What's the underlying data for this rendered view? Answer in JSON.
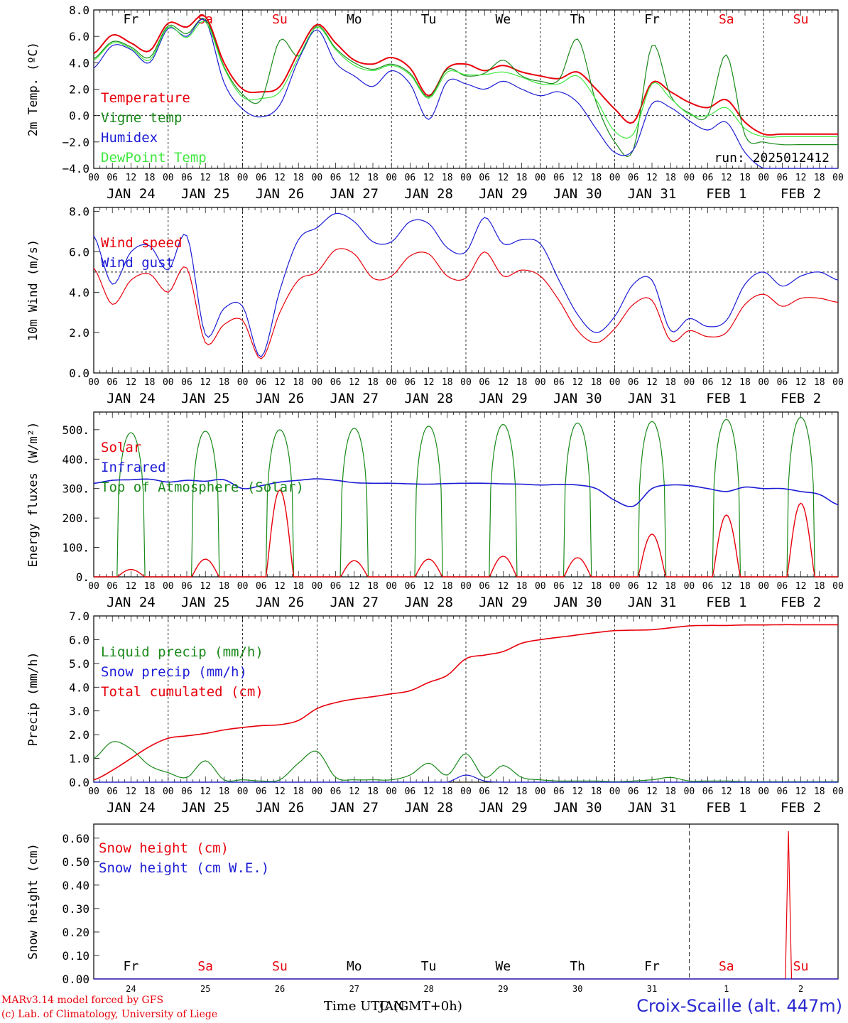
{
  "footer": {
    "model": "MARv3.14 model forced by GFS",
    "lab": "(c) Lab. of Climatology, University of Liege",
    "time_label": "Time UTC (GMT+0h)",
    "time_label_overlay": "JAN",
    "station": "Croix-Scaille (alt. 447m)"
  },
  "run_label": "run: 2025012412",
  "colors": {
    "red": "#e8000b",
    "green": "#1a8a1a",
    "blue": "#1c1cd6",
    "light_green": "#3ee83e",
    "weekend": "#e8000b",
    "weekday": "#000000"
  },
  "day_names": [
    "Fr",
    "Sa",
    "Su",
    "Mo",
    "Tu",
    "We",
    "Th",
    "Fr",
    "Sa",
    "Su"
  ],
  "day_weekend": [
    false,
    true,
    true,
    false,
    false,
    false,
    false,
    false,
    true,
    true
  ],
  "date_labels": [
    "JAN 24",
    "JAN 25",
    "JAN 26",
    "JAN 27",
    "JAN 28",
    "JAN 29",
    "JAN 30",
    "JAN 31",
    "FEB  1",
    "FEB  2"
  ],
  "hour_labels": [
    "00",
    "06",
    "12",
    "18"
  ],
  "day_numbers": [
    "24",
    "25",
    "26",
    "27",
    "28",
    "29",
    "30",
    "31",
    "1",
    "2"
  ],
  "chart_data": [
    {
      "type": "line",
      "ylabel": "2m Temp. (ºC)",
      "ylim": [
        -4,
        8
      ],
      "yticks": [
        "8.0",
        "6.0",
        "4.0",
        "2.0",
        "0.0",
        "−2.0",
        "−4.0"
      ],
      "reference_line": 0,
      "x_hours": [
        0,
        6,
        12,
        18,
        24,
        30,
        36,
        42,
        48,
        54,
        60,
        66,
        72,
        78,
        84,
        90,
        96,
        102,
        108,
        114,
        120,
        126,
        132,
        138,
        144,
        150,
        156,
        162,
        168,
        174,
        180,
        186,
        192,
        198,
        204,
        210,
        216,
        222,
        228,
        234,
        240
      ],
      "series": [
        {
          "name": "Temperature",
          "color": "#e8000b",
          "values": [
            4.7,
            6.1,
            5.5,
            4.9,
            7.0,
            6.7,
            7.5,
            4.0,
            2.0,
            1.8,
            2.2,
            4.8,
            6.9,
            5.5,
            4.2,
            3.9,
            4.4,
            3.6,
            1.5,
            3.6,
            3.9,
            3.4,
            3.8,
            3.3,
            3.0,
            2.8,
            3.3,
            2.0,
            0.5,
            -0.5,
            2.5,
            1.8,
            1.0,
            0.6,
            1.2,
            -0.5,
            -1.4,
            -1.4,
            -1.4,
            -1.4,
            -1.4
          ]
        },
        {
          "name": "Vigne temp",
          "color": "#1a8a1a",
          "values": [
            4.3,
            5.6,
            5.2,
            4.4,
            6.8,
            6.2,
            7.3,
            3.7,
            1.6,
            1.2,
            5.7,
            4.5,
            6.8,
            5.1,
            4.0,
            3.5,
            3.9,
            3.2,
            1.4,
            3.5,
            3.0,
            3.2,
            4.2,
            3.0,
            2.6,
            2.7,
            5.8,
            1.0,
            -2.0,
            -2.6,
            5.3,
            1.5,
            0.2,
            0.0,
            4.6,
            -1.5,
            -2.0,
            -2.2,
            -2.2,
            -2.2,
            -2.2
          ]
        },
        {
          "name": "Humidex",
          "color": "#1c1cd6",
          "values": [
            3.6,
            5.3,
            5.0,
            4.0,
            6.6,
            6.0,
            7.2,
            2.5,
            0.5,
            -0.1,
            0.8,
            4.2,
            6.5,
            4.0,
            3.0,
            2.2,
            3.4,
            2.4,
            -0.3,
            2.6,
            2.4,
            2.0,
            2.6,
            2.0,
            1.5,
            1.8,
            1.0,
            -1.0,
            -2.8,
            -2.6,
            0.9,
            0.6,
            -0.4,
            -1.1,
            -0.5,
            -2.8,
            -4.0,
            -4.0,
            -4.0,
            -4.0,
            -4.0
          ]
        },
        {
          "name": "DewPoint Temp",
          "color": "#3ee83e",
          "values": [
            4.2,
            5.5,
            5.1,
            4.2,
            6.7,
            5.9,
            7.1,
            3.6,
            1.4,
            1.3,
            1.8,
            4.4,
            6.7,
            5.0,
            3.8,
            3.4,
            3.8,
            3.1,
            1.3,
            3.3,
            3.1,
            3.1,
            3.3,
            2.9,
            2.4,
            2.4,
            3.0,
            1.2,
            -1.2,
            -1.4,
            2.4,
            1.3,
            0.1,
            0.0,
            0.6,
            -1.0,
            -1.6,
            -1.6,
            -1.6,
            -1.6,
            -1.6
          ]
        }
      ]
    },
    {
      "type": "line",
      "ylabel": "10m Wind (m/s)",
      "ylim": [
        0,
        8.2
      ],
      "yticks": [
        "8.0",
        "6.0",
        "4.0",
        "2.0",
        "0.0"
      ],
      "reference_line": 5,
      "x_hours": [
        0,
        6,
        12,
        18,
        24,
        30,
        36,
        42,
        48,
        54,
        60,
        66,
        72,
        78,
        84,
        90,
        96,
        102,
        108,
        114,
        120,
        126,
        132,
        138,
        144,
        150,
        156,
        162,
        168,
        174,
        180,
        186,
        192,
        198,
        204,
        210,
        216,
        222,
        228,
        234,
        240
      ],
      "series": [
        {
          "name": "Wind speed",
          "color": "#e8000b",
          "values": [
            5.2,
            3.4,
            4.6,
            4.9,
            4.0,
            5.2,
            1.5,
            2.4,
            2.6,
            0.7,
            3.0,
            4.6,
            5.0,
            6.1,
            5.9,
            4.7,
            4.8,
            5.8,
            5.9,
            4.8,
            4.7,
            6.0,
            4.8,
            5.1,
            4.8,
            3.6,
            2.1,
            1.5,
            2.2,
            3.4,
            3.6,
            1.6,
            2.1,
            1.8,
            2.0,
            3.4,
            3.9,
            3.3,
            3.7,
            3.7,
            3.5
          ]
        },
        {
          "name": "Wind gust",
          "color": "#1c1cd6",
          "values": [
            6.8,
            4.4,
            6.0,
            6.3,
            5.1,
            6.8,
            1.9,
            3.2,
            3.3,
            0.8,
            4.1,
            6.6,
            7.2,
            7.9,
            7.5,
            6.5,
            6.5,
            7.5,
            7.4,
            6.2,
            6.0,
            7.7,
            6.4,
            6.6,
            6.4,
            4.6,
            2.9,
            2.0,
            2.8,
            4.4,
            4.6,
            2.1,
            2.7,
            2.3,
            2.6,
            4.4,
            5.0,
            4.3,
            4.8,
            5.0,
            4.6
          ]
        }
      ]
    },
    {
      "type": "line",
      "ylabel": "Energy fluxes (W/m²)",
      "ylim": [
        0,
        560
      ],
      "yticks": [
        "500.",
        "400.",
        "300.",
        "200.",
        "100.",
        "0."
      ],
      "daily": {
        "toa_peaks": [
          490,
          495,
          500,
          505,
          512,
          518,
          523,
          528,
          535,
          542
        ],
        "solar_peaks": [
          25,
          60,
          295,
          55,
          60,
          70,
          65,
          145,
          210,
          250
        ],
        "sunrise_hour": 7.5,
        "sunset_hour": 16.5
      },
      "series": [
        {
          "name": "Solar",
          "color": "#e8000b"
        },
        {
          "name": "Infrared",
          "color": "#1c1cd6",
          "values": [
            318,
            328,
            330,
            332,
            322,
            328,
            325,
            330,
            300,
            310,
            322,
            328,
            333,
            328,
            320,
            318,
            318,
            316,
            315,
            317,
            318,
            318,
            316,
            315,
            312,
            314,
            312,
            300,
            260,
            240,
            300,
            312,
            310,
            300,
            290,
            305,
            300,
            300,
            290,
            280,
            245
          ]
        }
      ]
    },
    {
      "type": "line",
      "ylabel": "Precip (mm/h)",
      "ylim": [
        0,
        7.0
      ],
      "yticks": [
        "7.0",
        "6.0",
        "5.0",
        "4.0",
        "3.0",
        "2.0",
        "1.0",
        "0.0"
      ],
      "x_hours": [
        0,
        6,
        12,
        18,
        24,
        30,
        36,
        42,
        48,
        54,
        60,
        66,
        72,
        78,
        84,
        90,
        96,
        102,
        108,
        114,
        120,
        126,
        132,
        138,
        144,
        150,
        156,
        162,
        168,
        174,
        180,
        186,
        192,
        198,
        204,
        210,
        216,
        222,
        228,
        234,
        240
      ],
      "series": [
        {
          "name": "Liquid precip (mm/h)",
          "color": "#1a8a1a",
          "values": [
            1.0,
            1.7,
            1.4,
            0.7,
            0.4,
            0.2,
            0.9,
            0.1,
            0.1,
            0.05,
            0.1,
            0.8,
            1.3,
            0.2,
            0.1,
            0.1,
            0.1,
            0.3,
            0.8,
            0.3,
            1.2,
            0.2,
            0.7,
            0.2,
            0.1,
            0.05,
            0.05,
            0.05,
            0.02,
            0.05,
            0.1,
            0.2,
            0.05,
            0.05,
            0.05,
            0.02,
            0.02,
            0.02,
            0.02,
            0.02,
            0.02
          ]
        },
        {
          "name": "Snow precip (mm/h)",
          "color": "#1c1cd6",
          "values": [
            0,
            0,
            0,
            0,
            0,
            0,
            0,
            0,
            0,
            0,
            0,
            0,
            0,
            0,
            0,
            0,
            0,
            0,
            0,
            0,
            0.3,
            0.05,
            0,
            0,
            0,
            0,
            0,
            0,
            0,
            0,
            0,
            0,
            0,
            0,
            0,
            0,
            0,
            0,
            0,
            0,
            0
          ]
        },
        {
          "name": "Total cumulated (cm)",
          "color": "#e8000b",
          "values": [
            0.1,
            0.5,
            1.0,
            1.5,
            1.85,
            1.95,
            2.05,
            2.2,
            2.3,
            2.38,
            2.42,
            2.6,
            3.1,
            3.35,
            3.5,
            3.6,
            3.72,
            3.85,
            4.2,
            4.5,
            5.2,
            5.35,
            5.5,
            5.85,
            6.0,
            6.1,
            6.2,
            6.3,
            6.38,
            6.4,
            6.42,
            6.5,
            6.58,
            6.6,
            6.6,
            6.62,
            6.62,
            6.63,
            6.63,
            6.63,
            6.63
          ]
        }
      ]
    },
    {
      "type": "line",
      "ylabel": "Snow height (cm)",
      "ylim": [
        0,
        0.66
      ],
      "yticks": [
        "0.60",
        "0.50",
        "0.40",
        "0.30",
        "0.20",
        "0.10",
        "0.00"
      ],
      "x_hours": [
        0,
        24,
        48,
        72,
        96,
        120,
        144,
        168,
        192,
        216,
        223,
        224,
        225,
        240
      ],
      "series": [
        {
          "name": "Snow height (cm)",
          "color": "#e8000b",
          "values": [
            0,
            0,
            0,
            0,
            0,
            0,
            0,
            0,
            0,
            0,
            0,
            0.63,
            0,
            0
          ]
        },
        {
          "name": "Snow height (cm W.E.)",
          "color": "#1c1cd6",
          "values": [
            0,
            0,
            0,
            0,
            0,
            0,
            0,
            0,
            0,
            0,
            0,
            0,
            0,
            0
          ]
        }
      ]
    }
  ]
}
